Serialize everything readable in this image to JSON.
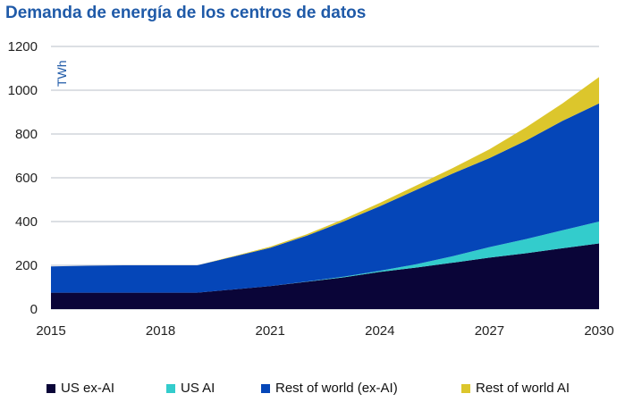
{
  "chart_data": {
    "type": "area",
    "stacked": true,
    "title": "Demanda de energía de los centros de datos",
    "ylabel": "TWh",
    "xlabel": "",
    "x": [
      2015,
      2016,
      2017,
      2018,
      2019,
      2020,
      2021,
      2022,
      2023,
      2024,
      2025,
      2026,
      2027,
      2028,
      2029,
      2030
    ],
    "xticks": [
      "2015",
      "2018",
      "2021",
      "2024",
      "2027",
      "2030"
    ],
    "yticks": [
      "0",
      "200",
      "400",
      "600",
      "800",
      "1000",
      "1200"
    ],
    "ylim": [
      0,
      1200
    ],
    "grid": true,
    "legend": "bottom",
    "series": [
      {
        "name": "US ex-AI",
        "color": "#0a0538",
        "values": [
          75,
          75,
          75,
          75,
          75,
          90,
          105,
          125,
          145,
          170,
          190,
          212,
          235,
          255,
          278,
          300
        ]
      },
      {
        "name": "US AI",
        "color": "#33cccc",
        "values": [
          0,
          0,
          0,
          0,
          0,
          0,
          0,
          1,
          3,
          5,
          15,
          30,
          48,
          65,
          82,
          100
        ]
      },
      {
        "name": "Rest of world (ex-AI)",
        "color": "#0546b8",
        "values": [
          120,
          123,
          125,
          125,
          125,
          150,
          175,
          209,
          252,
          295,
          340,
          378,
          407,
          450,
          500,
          540
        ]
      },
      {
        "name": "Rest of world AI",
        "color": "#dcc62c",
        "values": [
          0,
          0,
          0,
          0,
          0,
          2,
          5,
          7,
          10,
          15,
          20,
          25,
          40,
          60,
          80,
          120
        ]
      }
    ]
  }
}
